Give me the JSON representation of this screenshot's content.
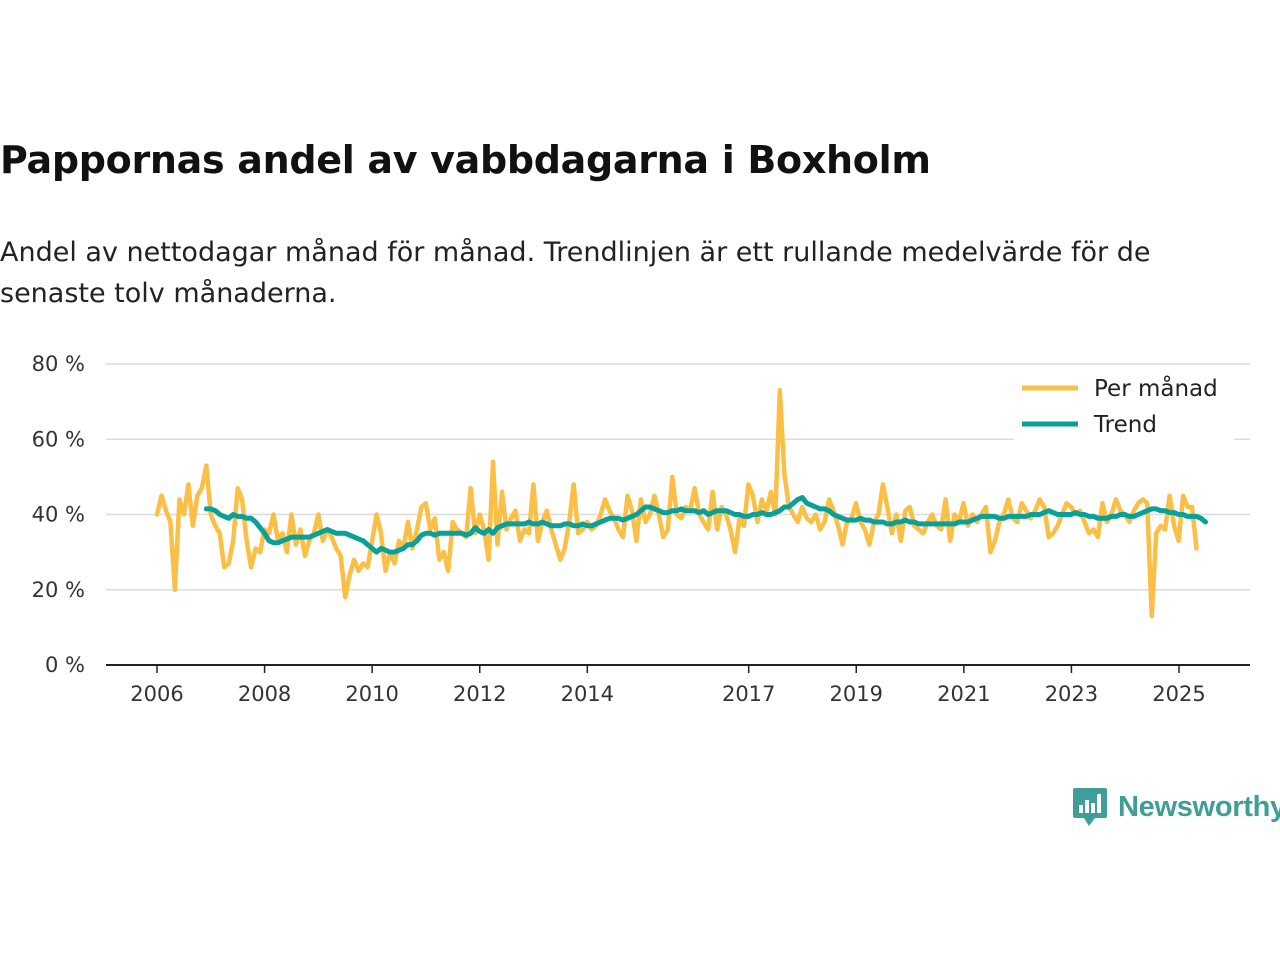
{
  "title": "Pappornas andel av vabbdagarna i Boxholm",
  "subtitle": "Andel av nettodagar månad för månad. Trendlinjen är ett rullande medelvärde för de senaste tolv månaderna.",
  "brand": {
    "name": "Newsworthy",
    "color": "#3f9e97"
  },
  "chart_data": {
    "type": "line",
    "title": "Pappornas andel av vabbdagarna i Boxholm",
    "xlabel": "",
    "ylabel": "",
    "ylim": [
      0,
      80
    ],
    "xlim": [
      2006.0,
      2025.4
    ],
    "yticks": [
      {
        "value": 0,
        "label": "0 %"
      },
      {
        "value": 20,
        "label": "20 %"
      },
      {
        "value": 40,
        "label": "40 %"
      },
      {
        "value": 60,
        "label": "60 %"
      },
      {
        "value": 80,
        "label": "80 %"
      }
    ],
    "xticks": [
      {
        "value": 2006,
        "label": "2006"
      },
      {
        "value": 2008,
        "label": "2008"
      },
      {
        "value": 2010,
        "label": "2010"
      },
      {
        "value": 2012,
        "label": "2012"
      },
      {
        "value": 2014,
        "label": "2014"
      },
      {
        "value": 2017,
        "label": "2017"
      },
      {
        "value": 2019,
        "label": "2019"
      },
      {
        "value": 2021,
        "label": "2021"
      },
      {
        "value": 2023,
        "label": "2023"
      },
      {
        "value": 2025,
        "label": "2025"
      }
    ],
    "grid": true,
    "legend_position": "top-right",
    "series": [
      {
        "name": "Per månad",
        "color": "#fbbf45",
        "start": 2006.0,
        "step": 0.0833,
        "values": [
          40,
          45,
          41,
          38,
          20,
          44,
          40,
          48,
          37,
          45,
          47,
          53,
          40,
          37,
          35,
          26,
          27,
          33,
          47,
          44,
          33,
          26,
          31,
          30,
          36,
          35,
          40,
          33,
          35,
          30,
          40,
          32,
          36,
          29,
          33,
          35,
          40,
          33,
          36,
          34,
          31,
          29,
          18,
          24,
          28,
          25,
          27,
          26,
          33,
          40,
          35,
          25,
          30,
          27,
          33,
          31,
          38,
          31,
          36,
          42,
          43,
          36,
          39,
          28,
          30,
          25,
          38,
          36,
          35,
          34,
          47,
          35,
          40,
          36,
          28,
          54,
          32,
          46,
          36,
          39,
          41,
          33,
          36,
          35,
          48,
          33,
          38,
          41,
          36,
          32,
          28,
          31,
          38,
          48,
          35,
          36,
          38,
          36,
          37,
          40,
          44,
          41,
          39,
          36,
          34,
          45,
          41,
          33,
          44,
          38,
          40,
          45,
          40,
          34,
          36,
          50,
          40,
          39,
          42,
          41,
          47,
          40,
          38,
          36,
          46,
          36,
          42,
          40,
          36,
          30,
          39,
          37,
          48,
          45,
          38,
          44,
          41,
          46,
          40,
          73,
          51,
          42,
          40,
          38,
          42,
          39,
          38,
          40,
          36,
          38,
          44,
          41,
          37,
          32,
          38,
          39,
          43,
          38,
          36,
          32,
          38,
          40,
          48,
          42,
          35,
          40,
          33,
          41,
          42,
          37,
          36,
          35,
          38,
          40,
          37,
          36,
          44,
          33,
          40,
          38,
          43,
          37,
          40,
          38,
          40,
          42,
          30,
          33,
          38,
          40,
          44,
          39,
          38,
          43,
          41,
          39,
          41,
          44,
          42,
          34,
          35,
          37,
          40,
          43,
          42,
          40,
          41,
          38,
          35,
          36,
          34,
          43,
          38,
          40,
          44,
          41,
          40,
          38,
          41,
          43,
          44,
          43,
          13,
          35,
          37,
          36,
          45,
          37,
          33,
          45,
          42,
          42,
          31
        ]
      },
      {
        "name": "Trend",
        "color": "#0a9f98",
        "start": 2006.917,
        "step": 0.0833,
        "values": [
          41.5,
          41.5,
          41,
          40,
          39.5,
          39,
          40,
          39.5,
          39.5,
          39,
          39,
          38,
          36.5,
          35,
          33,
          32.5,
          32.5,
          33,
          33.5,
          34,
          34,
          34,
          34,
          34,
          34.5,
          35,
          35.5,
          36,
          35.5,
          35,
          35,
          35,
          34.5,
          34,
          33.5,
          33,
          32,
          31,
          30,
          31,
          30.5,
          30,
          30,
          30.5,
          31,
          32,
          32,
          33,
          34.5,
          35,
          35,
          34.5,
          35,
          35,
          35,
          35,
          35,
          35,
          34.5,
          35,
          36.5,
          35.5,
          35,
          36,
          35,
          36.5,
          37,
          37.5,
          37.5,
          37.5,
          37.5,
          37.5,
          38,
          37.5,
          37.5,
          38,
          37.5,
          37,
          37,
          37,
          37.5,
          37.5,
          37,
          37,
          37.5,
          37,
          37,
          37.5,
          38,
          38.5,
          39,
          39,
          39,
          38.5,
          39,
          39.5,
          40,
          41,
          42,
          42,
          41.5,
          41,
          40.5,
          40.5,
          41,
          41,
          41.5,
          41,
          41,
          41,
          40.5,
          41,
          40,
          40.5,
          41,
          41,
          41,
          40.5,
          40,
          40,
          39.5,
          39.5,
          40,
          40,
          40.5,
          40,
          40,
          40.5,
          41,
          42,
          42,
          43,
          44,
          44.5,
          43,
          42.5,
          42,
          41.5,
          41.5,
          41,
          40,
          39.5,
          39,
          38.5,
          38.5,
          38.5,
          39,
          38.5,
          38.5,
          38,
          38,
          38,
          37.5,
          37.5,
          38,
          38,
          38.5,
          38,
          38,
          37.5,
          37.5,
          37.5,
          37.5,
          37.5,
          37.5,
          37.5,
          37.5,
          37.5,
          38,
          38,
          38,
          38.5,
          39,
          39.5,
          39.5,
          39.5,
          39.5,
          39,
          39,
          39.5,
          39.5,
          39.5,
          39.5,
          39.5,
          40,
          40,
          40,
          40.5,
          41,
          40.5,
          40,
          40,
          40,
          40,
          40.5,
          40,
          40,
          39.5,
          39.5,
          39,
          39,
          39,
          39.5,
          39.5,
          40,
          40,
          39.5,
          39.5,
          40,
          40.5,
          41,
          41.5,
          41.5,
          41,
          41,
          40.5,
          40.5,
          40,
          40,
          39.5,
          39.5,
          39.5,
          39,
          38
        ]
      }
    ]
  }
}
